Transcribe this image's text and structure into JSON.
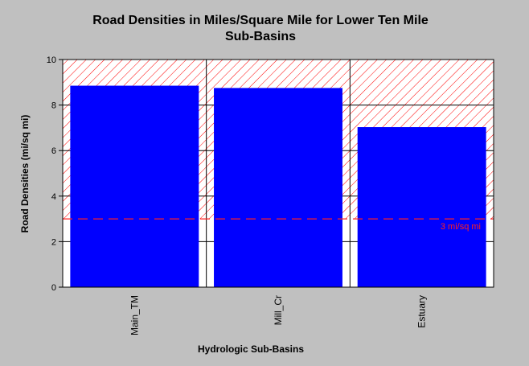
{
  "chart_data": {
    "type": "bar",
    "title": "Road Densities in Miles/Square Mile for Lower Ten Mile",
    "subtitle": "Sub-Basins",
    "xlabel": "Hydrologic Sub-Basins",
    "ylabel": "Road Densities (mi/sq mi)",
    "categories": [
      "Main_TM",
      "Mill_Cr",
      "Estuary"
    ],
    "values": [
      8.85,
      8.75,
      7.03
    ],
    "ylim": [
      0,
      10
    ],
    "yticks": [
      "0",
      "2",
      "4",
      "6",
      "8",
      "10"
    ],
    "grid": true,
    "threshold": {
      "value": 3,
      "label": "3 mi/sq mi"
    },
    "colors": {
      "bar": "#0000ff",
      "threshold_line": "#ff2020",
      "hatch": "#ff0000",
      "plot_background": "#ffffff",
      "page_background": "#c0c0c0"
    }
  }
}
